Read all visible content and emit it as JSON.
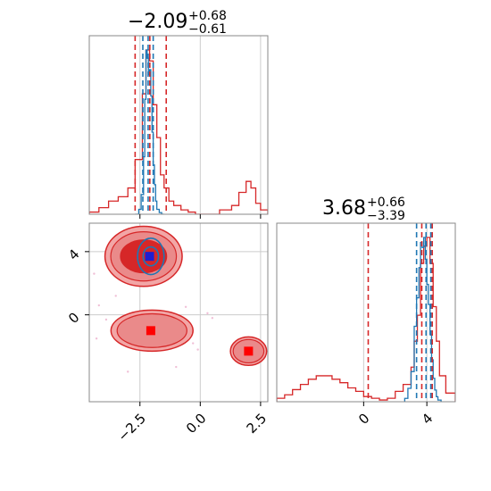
{
  "chart_data": [
    {
      "type": "histogram",
      "panel": "marginal-param-1",
      "title_main": "−2.09",
      "title_sup": "+0.68",
      "title_sub": "−0.61",
      "xlim": [
        -4.6,
        2.8
      ],
      "xticks": [
        -2.5,
        0.0,
        2.5
      ],
      "grid": true,
      "series": [
        {
          "color": "#d62728",
          "bins": [
            -4.6,
            -4.2,
            -3.8,
            -3.4,
            -3.0,
            -2.7,
            -2.4,
            -2.25,
            -2.1,
            -1.95,
            -1.8,
            -1.65,
            -1.5,
            -1.3,
            -1.1,
            -0.8,
            -0.5,
            -0.2,
            0.2,
            0.8,
            1.3,
            1.6,
            1.9,
            2.1,
            2.3,
            2.5,
            2.8
          ],
          "values": [
            0.01,
            0.03,
            0.06,
            0.08,
            0.12,
            0.25,
            0.55,
            0.75,
            0.7,
            0.5,
            0.35,
            0.18,
            0.12,
            0.06,
            0.04,
            0.02,
            0.01,
            0.0,
            0.0,
            0.02,
            0.04,
            0.1,
            0.15,
            0.12,
            0.05,
            0.02
          ]
        },
        {
          "color": "#1f77b4",
          "bins": [
            -2.7,
            -2.55,
            -2.45,
            -2.35,
            -2.3,
            -2.25,
            -2.2,
            -2.15,
            -2.1,
            -2.05,
            -2.0,
            -1.95,
            -1.9,
            -1.85,
            -1.8,
            -1.7,
            -1.6,
            -1.5
          ],
          "values": [
            0.0,
            0.03,
            0.12,
            0.35,
            0.7,
            1.0,
            0.95,
            0.85,
            0.88,
            0.72,
            0.5,
            0.3,
            0.18,
            0.08,
            0.03,
            0.01,
            0.0
          ]
        }
      ],
      "vlines": [
        {
          "x": -2.7,
          "color": "#d62728"
        },
        {
          "x": -2.09,
          "color": "#d62728"
        },
        {
          "x": -1.41,
          "color": "#d62728"
        },
        {
          "x": -2.38,
          "color": "#1f77b4"
        },
        {
          "x": -2.16,
          "color": "#1f77b4"
        },
        {
          "x": -1.95,
          "color": "#1f77b4"
        }
      ]
    },
    {
      "type": "contour",
      "panel": "joint-2d",
      "xlim": [
        -4.6,
        2.8
      ],
      "ylim": [
        -5.5,
        5.8
      ],
      "xticks": [
        -2.5,
        0.0,
        2.5
      ],
      "xtick_labels": [
        "−2.5",
        "0.0",
        "2.5"
      ],
      "yticks": [
        0,
        4
      ],
      "yticks_labels": [
        "0",
        "4"
      ],
      "grid": true,
      "markers": [
        {
          "x": -2.05,
          "y": -1.0,
          "color": "#ff0000"
        },
        {
          "x": 2.0,
          "y": -2.3,
          "color": "#ff0000"
        },
        {
          "x": -2.1,
          "y": 3.7,
          "color": "#1f1fd0"
        }
      ],
      "modes": [
        {
          "cx": -2.35,
          "cy": 3.7,
          "rx": 1.6,
          "ry": 1.9
        },
        {
          "cx": -2.0,
          "cy": -1.0,
          "rx": 1.7,
          "ry": 1.3
        },
        {
          "cx": 2.0,
          "cy": -2.3,
          "rx": 0.75,
          "ry": 0.9
        }
      ]
    },
    {
      "type": "histogram",
      "panel": "marginal-param-2",
      "title_main": "3.68",
      "title_sup": "+0.66",
      "title_sub": "−3.39",
      "xlim": [
        -5.5,
        5.8
      ],
      "xticks": [
        0,
        4
      ],
      "grid": true,
      "series": [
        {
          "color": "#d62728",
          "bins": [
            -5.5,
            -5.0,
            -4.5,
            -4.0,
            -3.5,
            -3.0,
            -2.5,
            -2.0,
            -1.5,
            -1.0,
            -0.5,
            0.0,
            0.5,
            1.0,
            1.5,
            2.0,
            2.5,
            3.0,
            3.2,
            3.4,
            3.6,
            3.8,
            4.0,
            4.2,
            4.4,
            4.6,
            4.8,
            5.2,
            5.8
          ],
          "values": [
            0.02,
            0.04,
            0.07,
            0.1,
            0.13,
            0.15,
            0.15,
            0.13,
            0.11,
            0.08,
            0.06,
            0.03,
            0.02,
            0.01,
            0.02,
            0.06,
            0.1,
            0.2,
            0.35,
            0.5,
            0.8,
            0.9,
            0.95,
            0.8,
            0.55,
            0.35,
            0.15,
            0.05
          ]
        },
        {
          "color": "#1f77b4",
          "bins": [
            2.6,
            2.8,
            3.0,
            3.2,
            3.35,
            3.5,
            3.6,
            3.7,
            3.8,
            3.9,
            4.0,
            4.1,
            4.2,
            4.3,
            4.4,
            4.5,
            4.6,
            4.7,
            4.9
          ],
          "values": [
            0.02,
            0.08,
            0.18,
            0.45,
            0.62,
            0.8,
            0.95,
            0.92,
            0.98,
            0.85,
            0.7,
            0.58,
            0.4,
            0.25,
            0.14,
            0.07,
            0.03,
            0.01
          ]
        }
      ],
      "vlines": [
        {
          "x": 0.29,
          "color": "#d62728"
        },
        {
          "x": 3.68,
          "color": "#d62728"
        },
        {
          "x": 4.34,
          "color": "#d62728"
        },
        {
          "x": 3.35,
          "color": "#1f77b4"
        },
        {
          "x": 3.95,
          "color": "#1f77b4"
        },
        {
          "x": 4.25,
          "color": "#1f77b4"
        }
      ]
    }
  ]
}
